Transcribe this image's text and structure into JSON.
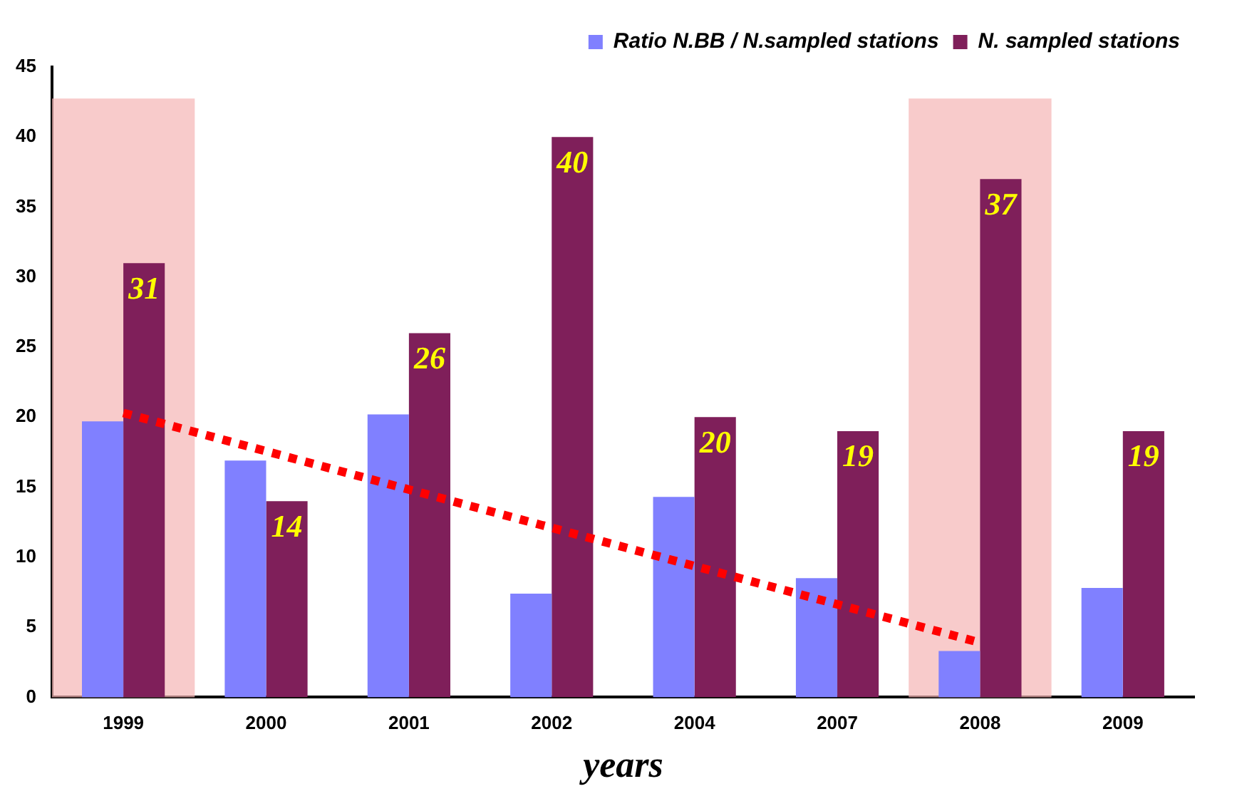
{
  "chart_data": {
    "type": "bar",
    "xlabel": "years",
    "categories": [
      "1999",
      "2000",
      "2001",
      "2002",
      "2004",
      "2007",
      "2008",
      "2009"
    ],
    "series": [
      {
        "name": "Ratio N.BB / N.sampled stations",
        "color": "#8080ff",
        "values": [
          19.7,
          16.9,
          20.2,
          7.4,
          14.3,
          8.5,
          3.3,
          7.8
        ]
      },
      {
        "name": "N. sampled stations",
        "color": "#7f1f5a",
        "values": [
          31,
          14,
          26,
          40,
          20,
          19,
          37,
          19
        ],
        "value_labels": [
          "31",
          "14",
          "26",
          "40",
          "20",
          "19",
          "37",
          "19"
        ]
      },
      {
        "type": "line",
        "color": "#ff0000",
        "line_style": "dotted",
        "values": [
          20.3,
          null,
          null,
          null,
          null,
          null,
          3.9,
          null
        ]
      }
    ],
    "bands": [
      {
        "axis": "x",
        "from": "1999",
        "to": "1999",
        "color": "#f5b5b5"
      },
      {
        "axis": "x",
        "from": "2008",
        "to": "2008",
        "color": "#f5b5b5"
      }
    ],
    "ylim": [
      0,
      45
    ],
    "yticks": [
      0,
      5,
      10,
      15,
      20,
      25,
      30,
      35,
      40,
      45
    ],
    "grid": false,
    "legend": "top right"
  }
}
